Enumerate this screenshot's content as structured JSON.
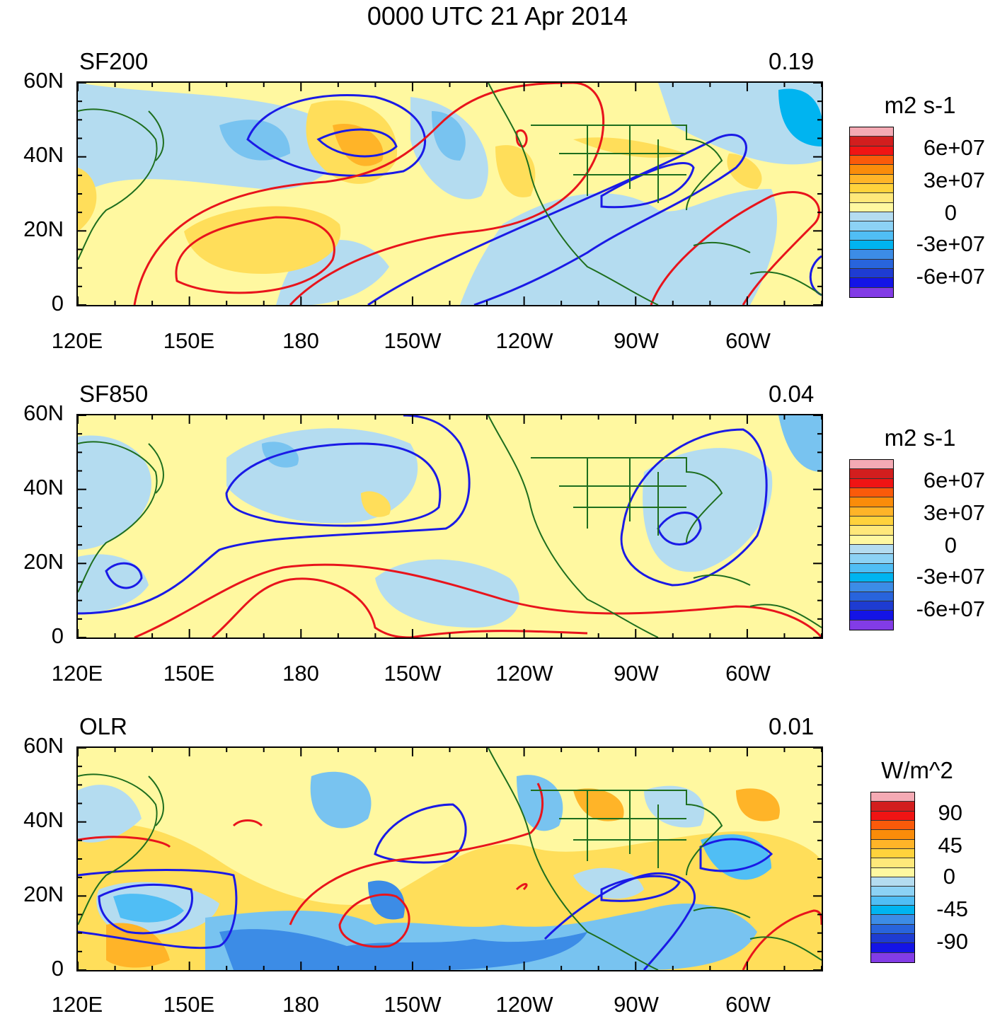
{
  "title": "0000 UTC 21 Apr 2014",
  "x_ticks": [
    "120E",
    "150E",
    "180",
    "150W",
    "120W",
    "90W",
    "60W"
  ],
  "y_ticks": [
    "60N",
    "40N",
    "20N",
    "0"
  ],
  "panels": [
    {
      "name": "SF200",
      "value": "0.19",
      "units": "m2 s-1",
      "colorbar_labels": [
        "6e+07",
        "3e+07",
        "0",
        "-3e+07",
        "-6e+07"
      ]
    },
    {
      "name": "SF850",
      "value": "0.04",
      "units": "m2 s-1",
      "colorbar_labels": [
        "6e+07",
        "3e+07",
        "0",
        "-3e+07",
        "-6e+07"
      ]
    },
    {
      "name": "OLR",
      "value": "0.01",
      "units": "W/m^2",
      "colorbar_labels": [
        "90",
        "45",
        "0",
        "-45",
        "-90"
      ]
    }
  ],
  "colors": {
    "positive_contour": "#e8141c",
    "negative_contour": "#1a1ae6",
    "coastline": "#1e6e1e",
    "shade_light_yellow": "#fff8a0",
    "shade_yellow": "#ffde5a",
    "shade_orange": "#ffb428",
    "shade_light_blue": "#b4dcf0",
    "shade_blue": "#78c3f0",
    "shade_deep_blue": "#3c8ce6"
  },
  "colorbar_colors": [
    "#f4aab4",
    "#d21e1e",
    "#f01414",
    "#fa5a0a",
    "#fa8c0a",
    "#ffb428",
    "#ffd23c",
    "#ffe87a",
    "#fff8a0",
    "#b4dcf0",
    "#8cd2f5",
    "#50bef5",
    "#00b4f0",
    "#3c8ce6",
    "#2864dc",
    "#1e3cd2",
    "#1414e6",
    "#823ce6"
  ]
}
